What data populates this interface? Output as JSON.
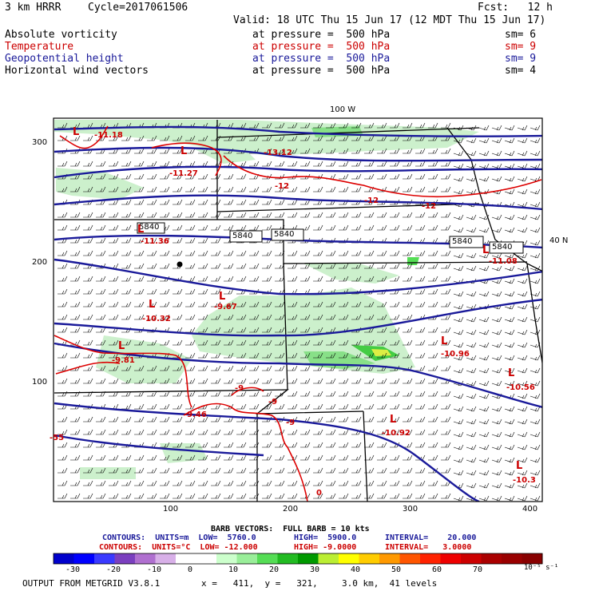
{
  "header": {
    "model": "3 km HRRR",
    "cycle": "Cycle=2017061506",
    "fcst": "Fcst:   12 h",
    "valid": "Valid: 18 UTC Thu 15 Jun 17 (12 MDT Thu 15 Jun 17)"
  },
  "fields": [
    {
      "name": "Absolute vorticity",
      "pressure": "at pressure =  500 hPa",
      "sm": "sm= 6",
      "color": "#000000"
    },
    {
      "name": "Temperature",
      "pressure": "at pressure =  500 hPa",
      "sm": "sm= 9",
      "color": "#cc0000"
    },
    {
      "name": "Geopotential height",
      "pressure": "at pressure =  500 hPa",
      "sm": "sm= 9",
      "color": "#1a1a9a"
    },
    {
      "name": "Horizontal wind vectors",
      "pressure": "at pressure =  500 hPa",
      "sm": "sm= 4",
      "color": "#000000"
    }
  ],
  "map": {
    "lon_label": "100 W",
    "lat_label": "40 N",
    "x_ticks": [
      "100",
      "200",
      "300",
      "400"
    ],
    "y_ticks": [
      "100",
      "200",
      "300"
    ],
    "height_labels": [
      "5840",
      "5840",
      "5840",
      "5840",
      "5840"
    ],
    "temp_labels": [
      "-11.18",
      "-11.27",
      "-13.12",
      "-12",
      "-12",
      "-12",
      "-11.36",
      "-11.08",
      "-9.67",
      "-10.32",
      "-9.81",
      "-10.96",
      "-10.56",
      "-9.46",
      "-9",
      "-9",
      "-10.92",
      "-10.3",
      "-9",
      "-55",
      "0"
    ],
    "low_labels": [
      "L",
      "L",
      "L",
      "L",
      "L",
      "L",
      "L",
      "L",
      "L",
      "L",
      "L"
    ]
  },
  "contours": {
    "barb_line": "BARB VECTORS:  FULL BARB = 10 kts",
    "height_line": {
      "label": "CONTOURS:  UNITS=m  LOW=  5760.0",
      "high": "HIGH=  5900.0",
      "interval": "INTERVAL=    20.000"
    },
    "temp_line": {
      "label": "CONTOURS:  UNITS=°C  LOW= -12.000",
      "high": "HIGH= -9.0000",
      "interval": "INTERVAL=   3.0000"
    }
  },
  "colorbar": {
    "ticks": [
      "-30",
      "-20",
      "-10",
      "0",
      "10",
      "20",
      "30",
      "40",
      "50",
      "60",
      "70"
    ],
    "units": "10⁻⁵ s⁻¹",
    "colors": [
      "#0000cc",
      "#0000ff",
      "#3a3aff",
      "#7b3fbf",
      "#b070d0",
      "#d8b0e8",
      "#ffffff",
      "#ffffff",
      "#ccffcc",
      "#99ee99",
      "#55dd55",
      "#22bb22",
      "#009900",
      "#bbee33",
      "#ffff00",
      "#ffcc00",
      "#ff9900",
      "#ff5500",
      "#ff2200",
      "#ee0000",
      "#cc0000",
      "#aa0000",
      "#990000",
      "#880000"
    ]
  },
  "footer": {
    "output": "OUTPUT FROM METGRID V3.8.1",
    "x": "x =   411,  y =   321,",
    "res": "3.0 km,  41 levels"
  }
}
